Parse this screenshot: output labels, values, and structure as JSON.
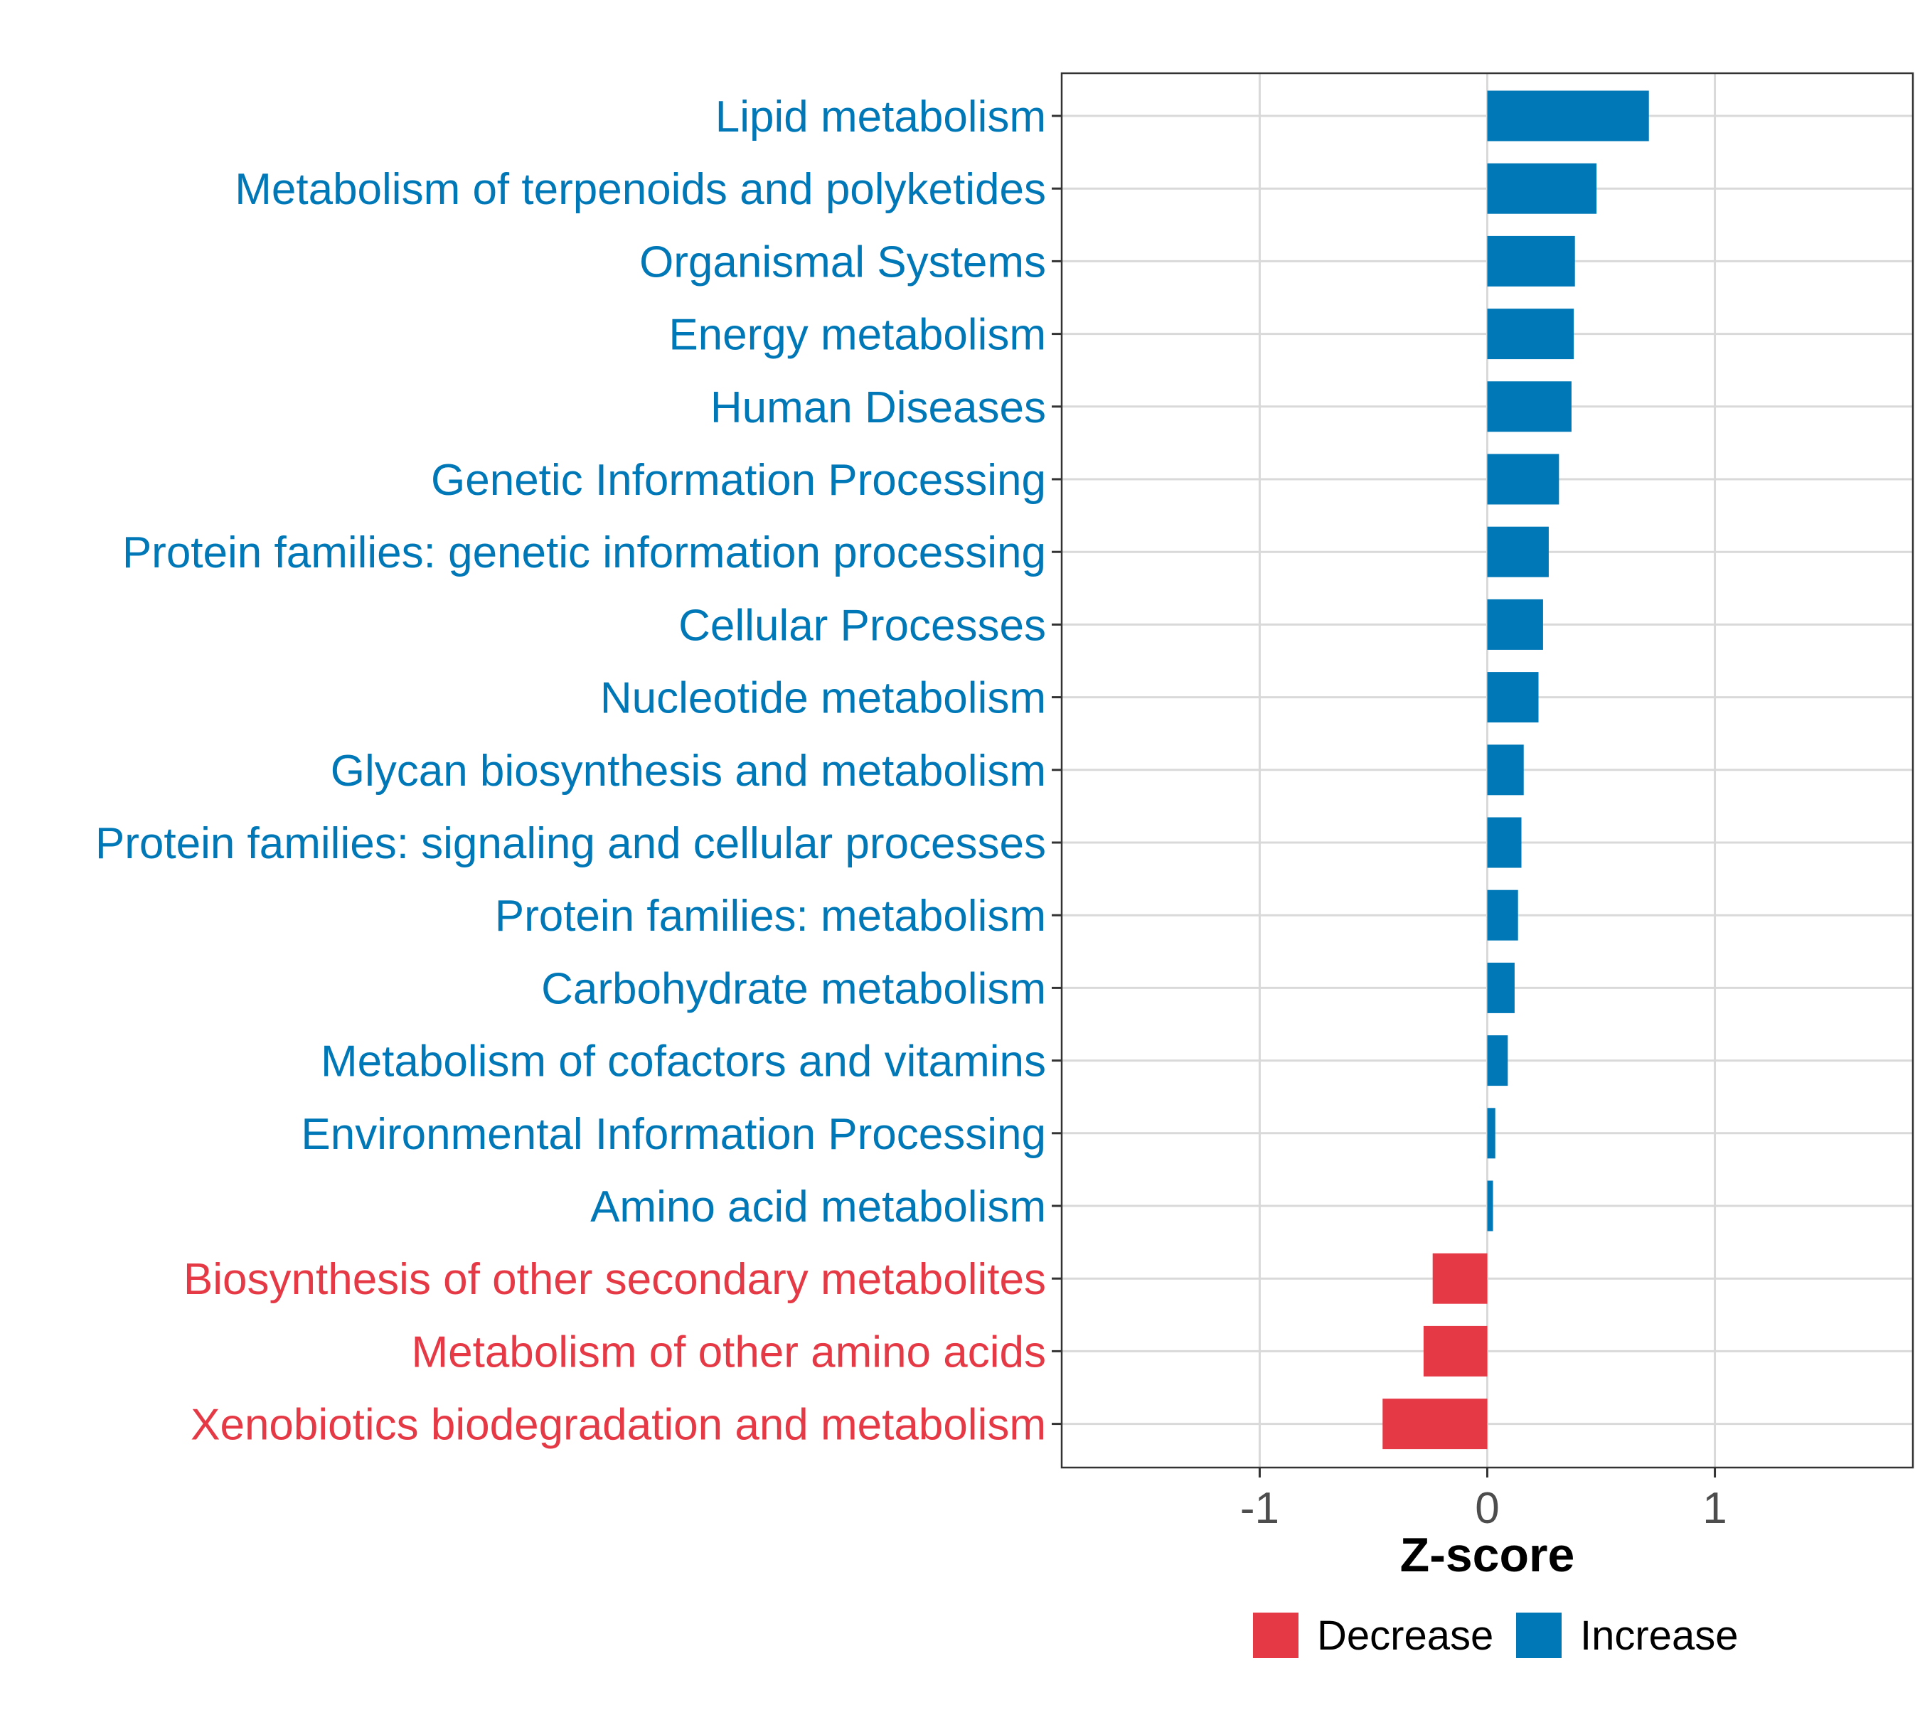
{
  "chart_data": {
    "type": "bar",
    "orientation": "horizontal",
    "title": "",
    "xlabel": "Z-score",
    "ylabel": "",
    "xlim": [
      -1.87,
      1.87
    ],
    "xticks": [
      -1,
      0,
      1
    ],
    "xtick_labels": [
      "-1",
      "0",
      "1"
    ],
    "grid": true,
    "legend_position": "bottom",
    "colors": {
      "Increase": "#0077B6",
      "Decrease": "#E63946",
      "grid": "#D9D9D9",
      "axis": "#333333",
      "tick_label": "#4D4D4D"
    },
    "legend": [
      {
        "label": "Decrease",
        "color": "#E63946"
      },
      {
        "label": "Increase",
        "color": "#0077B6"
      }
    ],
    "categories": [
      "Lipid metabolism",
      "Metabolism of terpenoids and polyketides",
      "Organismal Systems",
      "Energy metabolism",
      "Human Diseases",
      "Genetic Information Processing",
      "Protein families: genetic information processing",
      "Cellular Processes",
      "Nucleotide metabolism",
      "Glycan biosynthesis and metabolism",
      "Protein families: signaling and cellular processes",
      "Protein families: metabolism",
      "Carbohydrate metabolism",
      "Metabolism of cofactors and vitamins",
      "Environmental Information Processing",
      "Amino acid metabolism",
      "Biosynthesis of other secondary metabolites",
      "Metabolism of other amino acids",
      "Xenobiotics biodegradation and metabolism"
    ],
    "values": [
      0.71,
      0.48,
      0.385,
      0.38,
      0.37,
      0.315,
      0.27,
      0.245,
      0.225,
      0.16,
      0.15,
      0.135,
      0.12,
      0.09,
      0.035,
      0.025,
      -0.24,
      -0.28,
      -0.46
    ],
    "groups": [
      "Increase",
      "Increase",
      "Increase",
      "Increase",
      "Increase",
      "Increase",
      "Increase",
      "Increase",
      "Increase",
      "Increase",
      "Increase",
      "Increase",
      "Increase",
      "Increase",
      "Increase",
      "Increase",
      "Decrease",
      "Decrease",
      "Decrease"
    ]
  }
}
